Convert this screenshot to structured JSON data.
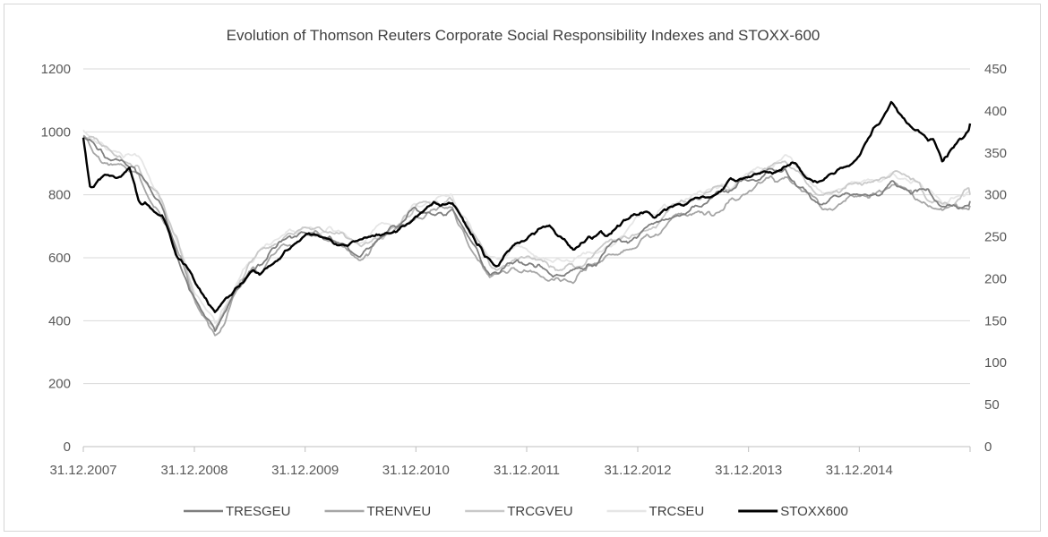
{
  "chart_data": {
    "type": "line",
    "title": "Evolution of Thomson Reuters Corporate Social Responsibility Indexes and STOXX-600",
    "x_tick_labels": [
      "31.12.2007",
      "31.12.2008",
      "31.12.2009",
      "31.12.2010",
      "31.12.2011",
      "31.12.2012",
      "31.12.2013",
      "31.12.2014"
    ],
    "x_range": [
      "2007-12-31",
      "2015-12-31"
    ],
    "y_left": {
      "range": [
        0,
        1200
      ],
      "ticks": [
        "0",
        "200",
        "400",
        "600",
        "800",
        "1000",
        "1200"
      ]
    },
    "y_right": {
      "range": [
        0,
        450
      ],
      "ticks": [
        "0",
        "50",
        "100",
        "150",
        "200",
        "250",
        "300",
        "350",
        "400",
        "450"
      ]
    },
    "grid": true,
    "legend_position": "bottom",
    "series": [
      {
        "name": "TRESGEU",
        "axis": "left",
        "color": "#7f7f7f",
        "points": [
          [
            "2007-12-31",
            980
          ],
          [
            "2008-03-31",
            920
          ],
          [
            "2008-06-30",
            880
          ],
          [
            "2008-09-30",
            720
          ],
          [
            "2008-12-31",
            470
          ],
          [
            "2009-03-09",
            380
          ],
          [
            "2009-06-30",
            560
          ],
          [
            "2009-12-31",
            690
          ],
          [
            "2010-06-30",
            620
          ],
          [
            "2010-12-31",
            740
          ],
          [
            "2011-04-30",
            760
          ],
          [
            "2011-08-31",
            560
          ],
          [
            "2011-12-31",
            580
          ],
          [
            "2012-06-01",
            550
          ],
          [
            "2012-12-31",
            680
          ],
          [
            "2013-06-30",
            760
          ],
          [
            "2013-12-31",
            840
          ],
          [
            "2014-04-30",
            880
          ],
          [
            "2014-08-31",
            780
          ],
          [
            "2014-12-31",
            800
          ],
          [
            "2015-04-30",
            850
          ],
          [
            "2015-09-30",
            760
          ],
          [
            "2015-12-31",
            780
          ]
        ]
      },
      {
        "name": "TRENVEU",
        "axis": "left",
        "color": "#a6a6a6",
        "points": [
          [
            "2007-12-31",
            975
          ],
          [
            "2008-03-31",
            915
          ],
          [
            "2008-06-30",
            870
          ],
          [
            "2008-09-30",
            710
          ],
          [
            "2008-12-31",
            460
          ],
          [
            "2009-03-09",
            372
          ],
          [
            "2009-06-30",
            550
          ],
          [
            "2009-12-31",
            680
          ],
          [
            "2010-06-30",
            600
          ],
          [
            "2010-12-31",
            730
          ],
          [
            "2011-04-30",
            750
          ],
          [
            "2011-08-31",
            540
          ],
          [
            "2011-12-31",
            565
          ],
          [
            "2012-06-01",
            530
          ],
          [
            "2012-12-31",
            660
          ],
          [
            "2013-06-30",
            740
          ],
          [
            "2013-12-31",
            820
          ],
          [
            "2014-04-30",
            860
          ],
          [
            "2014-08-31",
            760
          ],
          [
            "2014-12-31",
            780
          ],
          [
            "2015-04-30",
            830
          ],
          [
            "2015-09-30",
            740
          ],
          [
            "2015-12-31",
            765
          ]
        ]
      },
      {
        "name": "TRCGVEU",
        "axis": "left",
        "color": "#c9c9c9",
        "points": [
          [
            "2007-12-31",
            990
          ],
          [
            "2008-03-31",
            930
          ],
          [
            "2008-06-30",
            900
          ],
          [
            "2008-09-30",
            740
          ],
          [
            "2008-12-31",
            480
          ],
          [
            "2009-03-09",
            385
          ],
          [
            "2009-06-30",
            580
          ],
          [
            "2009-12-31",
            710
          ],
          [
            "2010-06-30",
            640
          ],
          [
            "2010-12-31",
            760
          ],
          [
            "2011-04-30",
            780
          ],
          [
            "2011-08-31",
            580
          ],
          [
            "2011-12-31",
            600
          ],
          [
            "2012-06-01",
            570
          ],
          [
            "2012-12-31",
            700
          ],
          [
            "2013-06-30",
            780
          ],
          [
            "2013-12-31",
            860
          ],
          [
            "2014-04-30",
            900
          ],
          [
            "2014-08-31",
            790
          ],
          [
            "2014-12-31",
            820
          ],
          [
            "2015-04-30",
            870
          ],
          [
            "2015-09-30",
            780
          ],
          [
            "2015-12-31",
            800
          ]
        ]
      },
      {
        "name": "TRCSEU",
        "axis": "left",
        "color": "#e6e6e6",
        "points": [
          [
            "2007-12-31",
            1000
          ],
          [
            "2008-03-31",
            940
          ],
          [
            "2008-06-30",
            910
          ],
          [
            "2008-09-30",
            750
          ],
          [
            "2008-12-31",
            490
          ],
          [
            "2009-03-09",
            395
          ],
          [
            "2009-06-30",
            590
          ],
          [
            "2009-12-31",
            720
          ],
          [
            "2010-06-30",
            650
          ],
          [
            "2010-12-31",
            770
          ],
          [
            "2011-04-30",
            800
          ],
          [
            "2011-08-31",
            600
          ],
          [
            "2011-12-31",
            610
          ],
          [
            "2012-06-01",
            580
          ],
          [
            "2012-12-31",
            710
          ],
          [
            "2013-06-30",
            790
          ],
          [
            "2013-12-31",
            870
          ],
          [
            "2014-04-30",
            910
          ],
          [
            "2014-08-31",
            800
          ],
          [
            "2014-12-31",
            830
          ],
          [
            "2015-04-30",
            880
          ],
          [
            "2015-09-30",
            790
          ],
          [
            "2015-12-31",
            810
          ]
        ]
      },
      {
        "name": "STOXX600",
        "axis": "right",
        "color": "#000000",
        "points": [
          [
            "2007-12-31",
            365
          ],
          [
            "2008-01-22",
            310
          ],
          [
            "2008-03-31",
            320
          ],
          [
            "2008-05-31",
            330
          ],
          [
            "2008-06-30",
            295
          ],
          [
            "2008-09-15",
            275
          ],
          [
            "2008-10-31",
            225
          ],
          [
            "2008-12-31",
            200
          ],
          [
            "2009-03-09",
            160
          ],
          [
            "2009-06-30",
            205
          ],
          [
            "2009-12-31",
            250
          ],
          [
            "2010-05-31",
            240
          ],
          [
            "2010-12-31",
            272
          ],
          [
            "2011-02-28",
            290
          ],
          [
            "2011-04-30",
            285
          ],
          [
            "2011-08-15",
            225
          ],
          [
            "2011-09-30",
            220
          ],
          [
            "2011-12-31",
            245
          ],
          [
            "2012-03-15",
            265
          ],
          [
            "2012-06-01",
            240
          ],
          [
            "2012-12-31",
            275
          ],
          [
            "2013-06-30",
            290
          ],
          [
            "2013-12-31",
            320
          ],
          [
            "2014-04-30",
            335
          ],
          [
            "2014-08-31",
            320
          ],
          [
            "2014-12-31",
            345
          ],
          [
            "2015-04-15",
            410
          ],
          [
            "2015-06-30",
            385
          ],
          [
            "2015-08-31",
            365
          ],
          [
            "2015-09-30",
            340
          ],
          [
            "2015-12-31",
            385
          ]
        ]
      }
    ]
  }
}
